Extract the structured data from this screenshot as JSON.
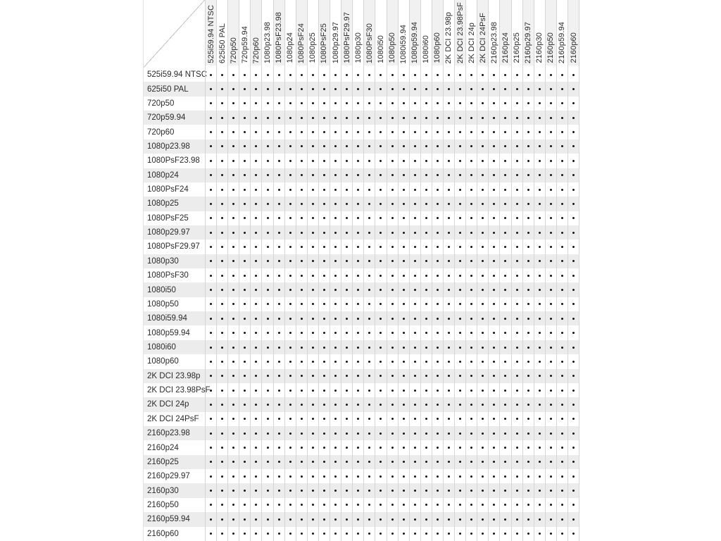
{
  "table": {
    "column_headers": [
      "525i59.94 NTSC",
      "625i50 PAL",
      "720p50",
      "720p59.94",
      "720p60",
      "1080p23.98",
      "1080PsF23.98",
      "1080p24",
      "1080PsF24",
      "1080p25",
      "1080PsF25",
      "1080p29.97",
      "1080PsF29.97",
      "1080p30",
      "1080PsF30",
      "1080i50",
      "1080p50",
      "1080i59.94",
      "1080p59.94",
      "1080i60",
      "1080p60",
      "2K DCI 23.98p",
      "2K DCI 23.98PsF",
      "2K DCI 24p",
      "2K DCI 24PsF",
      "2160p23.98",
      "2160p24",
      "2160p25",
      "2160p29.97",
      "2160p30",
      "2160p50",
      "2160p59.94",
      "2160p60"
    ],
    "rows": [
      {
        "label": "525i59.94 NTSC",
        "dots": "111111111111111111111111111111111"
      },
      {
        "label": "625i50 PAL",
        "dots": "111111111111111111111111111111111"
      },
      {
        "label": "720p50",
        "dots": "111111111111111111111111111111111"
      },
      {
        "label": "720p59.94",
        "dots": "111111111111111111111111111111111"
      },
      {
        "label": "720p60",
        "dots": "111111111111111111111111111111111"
      },
      {
        "label": "1080p23.98",
        "dots": "111111111111111111111111111111111"
      },
      {
        "label": "1080PsF23.98",
        "dots": "111111111111111111111111111111111"
      },
      {
        "label": "1080p24",
        "dots": "111111111111111111111111111111111"
      },
      {
        "label": "1080PsF24",
        "dots": "111111111111111111111111111111111"
      },
      {
        "label": "1080p25",
        "dots": "111111111111111111111111111111111"
      },
      {
        "label": "1080PsF25",
        "dots": "111111111111111111111111111111111"
      },
      {
        "label": "1080p29.97",
        "dots": "111111111111111111111111111111111"
      },
      {
        "label": "1080PsF29.97",
        "dots": "111111111111111111111111111111111"
      },
      {
        "label": "1080p30",
        "dots": "111111111111111111111111111111111"
      },
      {
        "label": "1080PsF30",
        "dots": "111111111111111111111111111111111"
      },
      {
        "label": "1080i50",
        "dots": "111111111111111111111111111111111"
      },
      {
        "label": "1080p50",
        "dots": "111111111111111111111111111111111"
      },
      {
        "label": "1080i59.94",
        "dots": "111111111111111111111111111111111"
      },
      {
        "label": "1080p59.94",
        "dots": "111111111111111111111111111111111"
      },
      {
        "label": "1080i60",
        "dots": "111111111111111111111111111111111"
      },
      {
        "label": "1080p60",
        "dots": "111111111111111111111111111111111"
      },
      {
        "label": "2K DCI 23.98p",
        "dots": "111111111111111111111111111111111"
      },
      {
        "label": "2K DCI 23.98PsF",
        "dots": "111111111111111111111111111111111"
      },
      {
        "label": "2K DCI 24p",
        "dots": "111111111111111111111111111111111"
      },
      {
        "label": "2K DCI 24PsF",
        "dots": "111111111111111111111111111111111"
      },
      {
        "label": "2160p23.98",
        "dots": "111111111111111111111111111111111"
      },
      {
        "label": "2160p24",
        "dots": "111111111111111111111111111111111"
      },
      {
        "label": "2160p25",
        "dots": "111111111111111111111111111111111"
      },
      {
        "label": "2160p29.97",
        "dots": "111111111111111111111111111111111"
      },
      {
        "label": "2160p30",
        "dots": "111111111111111111111111111111111"
      },
      {
        "label": "2160p50",
        "dots": "111111111111111111111111111111111"
      },
      {
        "label": "2160p59.94",
        "dots": "111111111111111111111111111111111"
      },
      {
        "label": "2160p60",
        "dots": "111111111111111111111111111111111"
      }
    ],
    "dot_symbol": "•",
    "colors": {
      "row_stripe": "#ececec",
      "header_stripe": "#f1f1f1",
      "grid_line": "#d6d6d6",
      "diagonal_line": "#c9c9c9",
      "text": "#2b2b2b",
      "dot": "#141414"
    }
  }
}
